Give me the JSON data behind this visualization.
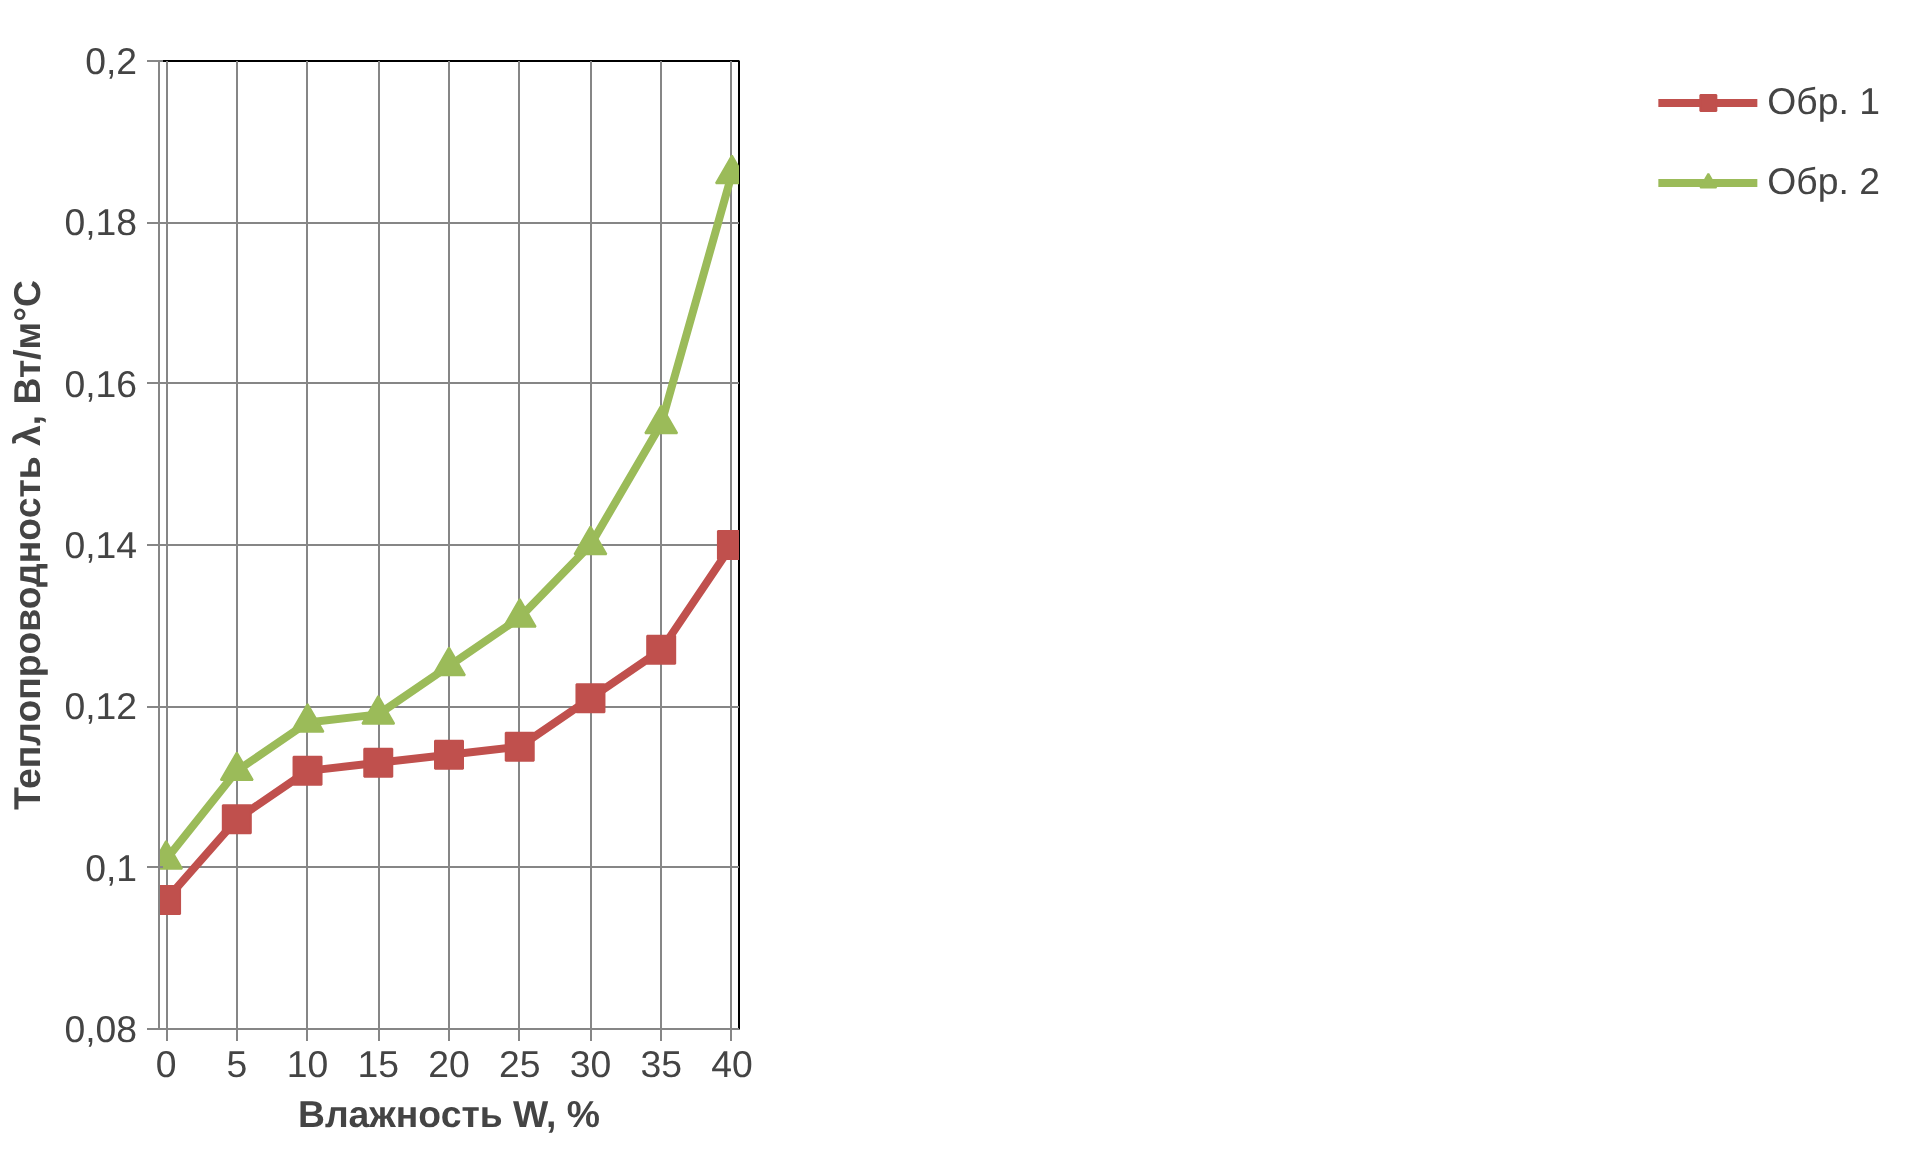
{
  "chart_data": {
    "type": "line",
    "xlabel": "Влажность W, %",
    "ylabel": "Теплопроводность λ, Вт/м°С",
    "x": [
      0,
      5,
      10,
      15,
      20,
      25,
      30,
      35,
      40
    ],
    "series": [
      {
        "name": "Обр. 1",
        "color": "#c0504d",
        "marker": "square",
        "values": [
          0.096,
          0.106,
          0.112,
          0.113,
          0.114,
          0.115,
          0.121,
          0.127,
          0.14
        ]
      },
      {
        "name": "Обр. 2",
        "color": "#9bbb59",
        "marker": "triangle",
        "values": [
          0.101,
          0.112,
          0.118,
          0.119,
          0.125,
          0.131,
          0.14,
          0.155,
          0.186
        ]
      }
    ],
    "xlim": [
      -0.5,
      40.5
    ],
    "xticks": [
      0,
      5,
      10,
      15,
      20,
      25,
      30,
      35,
      40
    ],
    "ylim": [
      0.08,
      0.2
    ],
    "yticks": [
      {
        "value": 0.08,
        "label": "0,08"
      },
      {
        "value": 0.1,
        "label": "0,1"
      },
      {
        "value": 0.12,
        "label": "0,12"
      },
      {
        "value": 0.14,
        "label": "0,14"
      },
      {
        "value": 0.16,
        "label": "0,16"
      },
      {
        "value": 0.18,
        "label": "0,18"
      },
      {
        "value": 0.2,
        "label": "0,2"
      }
    ],
    "grid": true,
    "legend": "right",
    "line_style": "solid"
  }
}
